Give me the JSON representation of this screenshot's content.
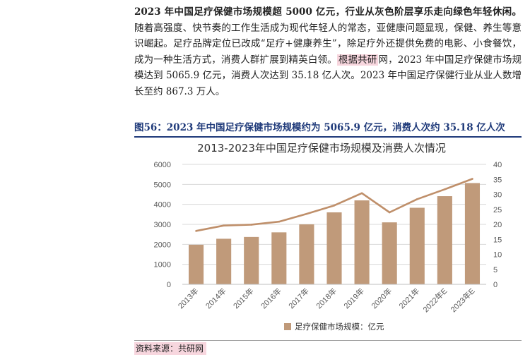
{
  "intro": {
    "lead_bold": "2023 年中国足疗保健市场规模超 5000 亿元，行业从灰色阶层享乐走向绿色年轻休闲。",
    "body": "随着高强度、快节奏的工作生活成为现代年轻人的常态，亚健康问题显现，保健、养生等意识崛起。足疗品牌定位已改成“足疗+健康养生”，除足疗外还提供免费的电影、小食餐饮，成为一种生活方式，消费人群扩展到精英白领。",
    "highlight": "根据共研",
    "tail_1": "网，2023 年中国足疗保健市场规模达到 5065.9 亿元，消费人次达到 35.18 亿人次。",
    "tail_2": "2023 年中国足疗保健行业从业人数增长至约 867.3 万人。"
  },
  "figure": {
    "caption": "图56：2023 年中国足疗保健市场规模约为 5065.9 亿元，消费人次约 35.18 亿人次",
    "source": "资料来源：共研网"
  },
  "chart_data": {
    "type": "bar",
    "title": "2013-2023年中国足疗保健市场规模及消费人次情况",
    "categories": [
      "2013年",
      "2014年",
      "2015年",
      "2016年",
      "2017年",
      "2018年",
      "2019年",
      "2020年",
      "2021年",
      "2022年E",
      "2023年E"
    ],
    "series": [
      {
        "name": "足疗保健市场规模：亿元",
        "type": "bar",
        "axis": "left",
        "color": "#c09a7a",
        "values": [
          1980,
          2280,
          2370,
          2600,
          3000,
          3600,
          4200,
          3100,
          3830,
          4410,
          5066
        ]
      },
      {
        "type": "line",
        "axis": "right",
        "color": "#bf8f6a",
        "values": [
          17.8,
          19.6,
          19.9,
          20.9,
          23.5,
          26.3,
          30.4,
          24.0,
          28.4,
          31.7,
          35.18
        ]
      }
    ],
    "ylim_left": [
      0,
      6000
    ],
    "yticks_left": [
      0,
      1000,
      2000,
      3000,
      4000,
      5000,
      6000
    ],
    "ylim_right": [
      0,
      40
    ],
    "yticks_right": [
      0,
      5,
      10,
      15,
      20,
      25,
      30,
      35,
      40
    ],
    "grid": true,
    "legend_position": "bottom"
  }
}
